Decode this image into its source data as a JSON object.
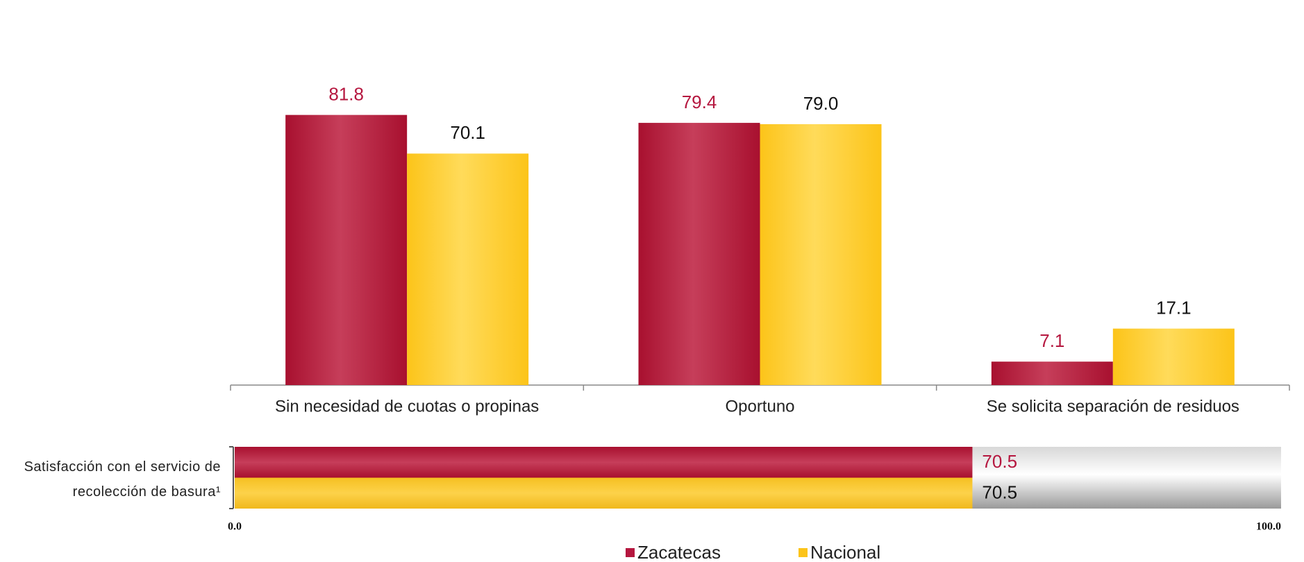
{
  "chart_data": [
    {
      "type": "bar",
      "categories": [
        "Sin necesidad de cuotas o propinas",
        "Oportuno",
        "Se solicita separación de residuos"
      ],
      "series": [
        {
          "name": "Zacatecas",
          "color": "#b5173f",
          "values": [
            81.8,
            79.4,
            7.1
          ]
        },
        {
          "name": "Nacional",
          "color": "#fcc419",
          "values": [
            70.1,
            79.0,
            17.1
          ],
          "value_labels": [
            "70.1",
            "79.0",
            "17.1"
          ]
        }
      ]
    },
    {
      "type": "hbar",
      "categories": [
        "Satisfacción con el servicio de recolección de basura¹"
      ],
      "series": [
        {
          "color": "#b5173f",
          "values": [
            70.5
          ]
        },
        {
          "color": "#fcc419",
          "values": [
            70.5
          ]
        }
      ],
      "xlim": [
        0,
        100
      ],
      "xticks": [
        {
          "value": 0,
          "label": "0.0"
        },
        {
          "value": 100,
          "label": "100.0"
        }
      ]
    }
  ]
}
